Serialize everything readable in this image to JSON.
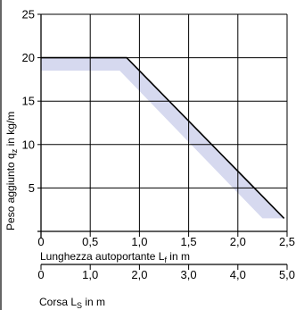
{
  "chart_data": {
    "type": "line",
    "ylabel": "Peso aggiunto q",
    "ylabel_sub": "z",
    "ylabel_unit": " in kg/m",
    "xlabel": "Lunghezza autoportante L",
    "xlabel_sub": "f",
    "xlabel_unit": " in m",
    "x2label": "Corsa L",
    "x2label_sub": "S",
    "x2label_unit": " in m",
    "xlim": [
      0,
      2.5
    ],
    "ylim": [
      0,
      25
    ],
    "x_ticks": [
      "0",
      "0,5",
      "1,0",
      "1,5",
      "2,0",
      "2,5"
    ],
    "x_tick_values": [
      0,
      0.5,
      1.0,
      1.5,
      2.0,
      2.5
    ],
    "x2_ticks": [
      "0",
      "1,0",
      "2,0",
      "3,0",
      "4,0",
      "5,0"
    ],
    "y_ticks": [
      "5",
      "10",
      "15",
      "20",
      "25"
    ],
    "y_tick_values": [
      5,
      10,
      15,
      20,
      25
    ],
    "grid": true,
    "series": [
      {
        "role": "line",
        "color": "#000000",
        "x": [
          0,
          0.87,
          2.47
        ],
        "y": [
          20,
          20,
          1.5
        ]
      },
      {
        "role": "band",
        "color": "#d6d9ef",
        "upper_x": [
          0,
          0.87,
          2.47
        ],
        "upper_y": [
          20,
          20,
          1.5
        ],
        "lower_x": [
          2.25,
          0.8,
          0
        ],
        "lower_y": [
          1.5,
          18.5,
          18.5
        ]
      }
    ]
  }
}
